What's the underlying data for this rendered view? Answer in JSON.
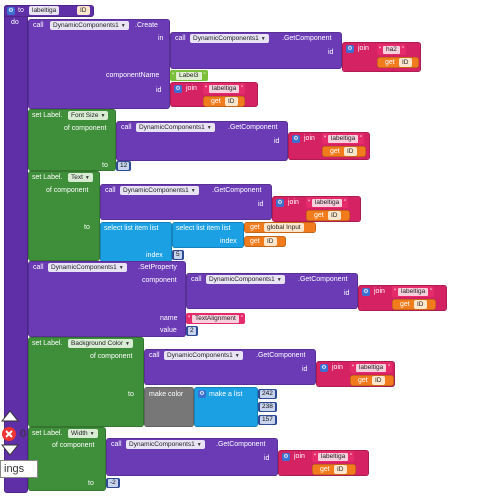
{
  "procedure": {
    "to": "to",
    "name": "labeltiga",
    "param": "ID",
    "do": "do"
  },
  "create_call": {
    "call": "call",
    "component": "DynamicComponents1",
    "method": ".Create",
    "in_label": "in",
    "component_name_label": "componentName",
    "id_label": "id",
    "in_getcomponent": {
      "call": "call",
      "component": "DynamicComponents1",
      "method": ".GetComponent",
      "id_label": "id",
      "join": "join",
      "text": "ha2",
      "get": "get",
      "var": "ID"
    },
    "component_name_value": "Label3",
    "id_join": {
      "join": "join",
      "text": "labeltiga",
      "get": "get",
      "var": "ID"
    }
  },
  "font_size": {
    "set": "set Label.",
    "property": "Font Size",
    "of_component": "of component",
    "to": "to",
    "call": "call",
    "component": "DynamicComponents1",
    "method": ".GetComponent",
    "id_label": "id",
    "join": "join",
    "text": "labeltiga",
    "get": "get",
    "var": "ID",
    "value": "12"
  },
  "text_block": {
    "set": "set Label.",
    "property": "Text",
    "of_component": "of component",
    "to": "to",
    "call": "call",
    "component": "DynamicComponents1",
    "method": ".GetComponent",
    "id_label": "id",
    "join": "join",
    "text": "labeltiga",
    "get": "get",
    "var": "ID",
    "select_outer": "select list item list",
    "select_inner": "select list item list",
    "get_global": "get",
    "global_var": "global Input",
    "index_label": "index",
    "get_id": "get",
    "id_var": "ID",
    "outer_index": "5"
  },
  "set_property": {
    "call": "call",
    "component": "DynamicComponents1",
    "method": ".SetProperty",
    "component_label": "component",
    "name_label": "name",
    "value_label": "value",
    "gc_call": "call",
    "gc_component": "DynamicComponents1",
    "gc_method": ".GetComponent",
    "id_label": "id",
    "join": "join",
    "text": "labeltiga",
    "get": "get",
    "var": "ID",
    "name_value": "TextAlignment",
    "value_value": "2"
  },
  "bg_color": {
    "set": "set Label.",
    "property": "Background Color",
    "of_component": "of component",
    "to": "to",
    "call": "call",
    "component": "DynamicComponents1",
    "method": ".GetComponent",
    "id_label": "id",
    "join": "join",
    "text": "labeltiga",
    "get": "get",
    "var": "ID",
    "make_color": "make color",
    "make_list": "make a list",
    "r": "242",
    "g": "238",
    "b": "157"
  },
  "width_block": {
    "set": "set Label.",
    "property": "Width",
    "of_component": "of component",
    "to": "to",
    "call": "call",
    "component": "DynamicComponents1",
    "method": ".GetComponent",
    "id_label": "id",
    "join": "join",
    "text": "labeltiga",
    "get": "get",
    "var": "ID",
    "value": "-2"
  },
  "workspace": {
    "warning_count": "0",
    "settings_label": "ings"
  },
  "colors": {
    "procedure": "#5e2fa7",
    "component": "#3f8f3a",
    "text": "#d42263",
    "variable": "#f27b1d",
    "math": "#3d4c8c",
    "list": "#1aa0e3",
    "color": "#777777"
  }
}
